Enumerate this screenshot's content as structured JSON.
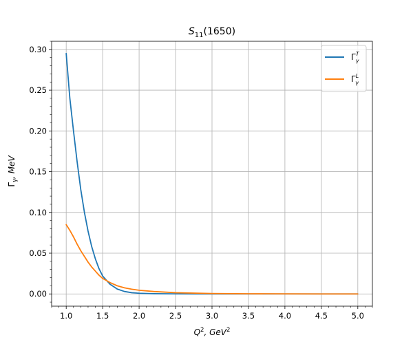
{
  "chart_data": {
    "type": "line",
    "title": {
      "base": "S",
      "sub": "11",
      "rest": "(1650)"
    },
    "xlabel": {
      "base": "Q",
      "sup": "2",
      "mid": ", GeV",
      "sup2": "2"
    },
    "ylabel": {
      "base": "Γ",
      "sub": "γ",
      "rest": ", MeV"
    },
    "xlim": [
      0.8,
      5.2
    ],
    "ylim": [
      -0.015,
      0.31
    ],
    "x_ticks": [
      1.0,
      1.5,
      2.0,
      2.5,
      3.0,
      3.5,
      4.0,
      4.5,
      5.0
    ],
    "x_tick_labels": [
      "1.0",
      "1.5",
      "2.0",
      "2.5",
      "3.0",
      "3.5",
      "4.0",
      "4.5",
      "5.0"
    ],
    "y_ticks": [
      0.0,
      0.05,
      0.1,
      0.15,
      0.2,
      0.25,
      0.3
    ],
    "y_tick_labels": [
      "0.00",
      "0.05",
      "0.10",
      "0.15",
      "0.20",
      "0.25",
      "0.30"
    ],
    "x_minor_step": 0.1,
    "y_minor_step": 0.01,
    "grid": true,
    "legend_position": "top-right",
    "series": [
      {
        "name": {
          "base": "Γ",
          "sub": "γ",
          "sup": "T"
        },
        "color": "#1f77b4",
        "x": [
          1.0,
          1.05,
          1.1,
          1.15,
          1.2,
          1.25,
          1.3,
          1.35,
          1.4,
          1.45,
          1.5,
          1.6,
          1.7,
          1.8,
          1.9,
          2.0,
          2.2,
          2.5,
          3.0,
          3.5,
          4.0,
          4.5,
          5.0
        ],
        "y": [
          0.295,
          0.24,
          0.2,
          0.162,
          0.128,
          0.1,
          0.077,
          0.058,
          0.043,
          0.031,
          0.022,
          0.012,
          0.006,
          0.003,
          0.0015,
          0.0008,
          0.0003,
          0.0001,
          0.0,
          0.0,
          0.0,
          0.0,
          0.0
        ]
      },
      {
        "name": {
          "base": "Γ",
          "sub": "γ",
          "sup": "L"
        },
        "color": "#ff7f0e",
        "x": [
          1.0,
          1.05,
          1.1,
          1.15,
          1.2,
          1.25,
          1.3,
          1.35,
          1.4,
          1.45,
          1.5,
          1.6,
          1.7,
          1.8,
          1.9,
          2.0,
          2.2,
          2.5,
          3.0,
          3.5,
          4.0,
          4.5,
          5.0
        ],
        "y": [
          0.085,
          0.078,
          0.07,
          0.061,
          0.053,
          0.046,
          0.039,
          0.033,
          0.028,
          0.023,
          0.019,
          0.014,
          0.01,
          0.0075,
          0.0058,
          0.0045,
          0.003,
          0.0015,
          0.0005,
          0.0002,
          0.0001,
          0.0,
          0.0
        ]
      }
    ]
  }
}
